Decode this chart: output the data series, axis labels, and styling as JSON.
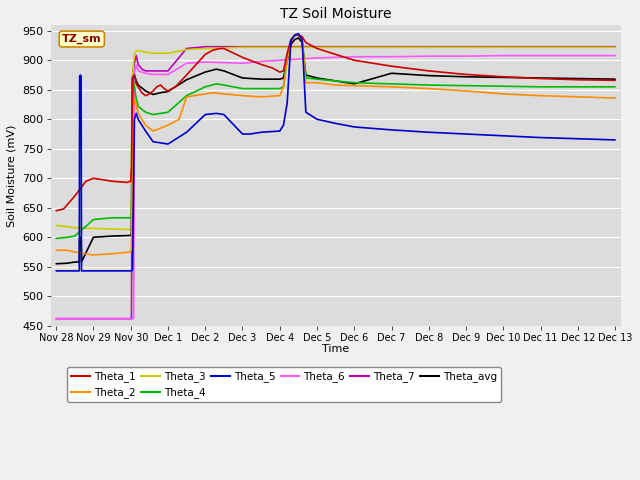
{
  "title": "TZ Soil Moisture",
  "ylabel": "Soil Moisture (mV)",
  "xlabel": "Time",
  "ylim": [
    450,
    960
  ],
  "xlim": [
    -0.15,
    15.15
  ],
  "bg_color": "#dcdcdc",
  "fig_bg_color": "#f0f0f0",
  "legend_box_label": "TZ_sm",
  "series": {
    "Theta_1": {
      "color": "#cc0000",
      "points": [
        [
          0,
          645
        ],
        [
          0.2,
          648
        ],
        [
          0.5,
          670
        ],
        [
          0.8,
          695
        ],
        [
          1.0,
          700
        ],
        [
          1.5,
          695
        ],
        [
          1.9,
          693
        ],
        [
          2.0,
          695
        ],
        [
          2.02,
          720
        ],
        [
          2.05,
          870
        ],
        [
          2.1,
          875
        ],
        [
          2.15,
          860
        ],
        [
          2.2,
          855
        ],
        [
          2.3,
          845
        ],
        [
          2.4,
          840
        ],
        [
          2.5,
          843
        ],
        [
          2.6,
          848
        ],
        [
          2.7,
          855
        ],
        [
          2.8,
          858
        ],
        [
          2.9,
          852
        ],
        [
          3.0,
          848
        ],
        [
          3.2,
          855
        ],
        [
          3.5,
          875
        ],
        [
          4.0,
          910
        ],
        [
          4.2,
          917
        ],
        [
          4.4,
          920
        ],
        [
          4.5,
          920
        ],
        [
          5.0,
          905
        ],
        [
          5.2,
          900
        ],
        [
          5.5,
          893
        ],
        [
          5.8,
          887
        ],
        [
          6.0,
          880
        ],
        [
          6.1,
          882
        ],
        [
          6.2,
          912
        ],
        [
          6.3,
          935
        ],
        [
          6.4,
          942
        ],
        [
          6.5,
          943
        ],
        [
          6.6,
          940
        ],
        [
          6.7,
          930
        ],
        [
          7.0,
          920
        ],
        [
          7.5,
          910
        ],
        [
          8.0,
          900
        ],
        [
          9.0,
          890
        ],
        [
          10.0,
          882
        ],
        [
          11.0,
          876
        ],
        [
          12.0,
          872
        ],
        [
          13.0,
          869
        ],
        [
          14.0,
          867
        ],
        [
          15.0,
          866
        ]
      ]
    },
    "Theta_2": {
      "color": "#ff8c00",
      "points": [
        [
          0,
          578
        ],
        [
          0.3,
          578
        ],
        [
          0.5,
          575
        ],
        [
          1.0,
          570
        ],
        [
          1.5,
          572
        ],
        [
          2.0,
          575
        ],
        [
          2.02,
          580
        ],
        [
          2.05,
          800
        ],
        [
          2.1,
          835
        ],
        [
          2.15,
          825
        ],
        [
          2.2,
          810
        ],
        [
          2.4,
          790
        ],
        [
          2.6,
          780
        ],
        [
          2.8,
          785
        ],
        [
          3.0,
          790
        ],
        [
          3.3,
          800
        ],
        [
          3.5,
          838
        ],
        [
          4.0,
          843
        ],
        [
          4.2,
          845
        ],
        [
          4.5,
          843
        ],
        [
          5.0,
          840
        ],
        [
          5.5,
          838
        ],
        [
          6.0,
          840
        ],
        [
          6.1,
          855
        ],
        [
          6.2,
          900
        ],
        [
          6.3,
          933
        ],
        [
          6.4,
          942
        ],
        [
          6.5,
          943
        ],
        [
          6.6,
          935
        ],
        [
          6.7,
          862
        ],
        [
          7.0,
          862
        ],
        [
          7.5,
          858
        ],
        [
          8.0,
          857
        ],
        [
          9.0,
          855
        ],
        [
          10.0,
          852
        ],
        [
          11.0,
          848
        ],
        [
          12.0,
          843
        ],
        [
          13.0,
          840
        ],
        [
          14.0,
          838
        ],
        [
          15.0,
          836
        ]
      ]
    },
    "Theta_3": {
      "color": "#cccc00",
      "points": [
        [
          0,
          620
        ],
        [
          0.3,
          618
        ],
        [
          0.5,
          616
        ],
        [
          1.0,
          615
        ],
        [
          1.5,
          614
        ],
        [
          2.0,
          613
        ],
        [
          2.02,
          614
        ],
        [
          2.05,
          875
        ],
        [
          2.1,
          910
        ],
        [
          2.15,
          916
        ],
        [
          2.2,
          916
        ],
        [
          2.4,
          914
        ],
        [
          2.6,
          912
        ],
        [
          2.8,
          912
        ],
        [
          3.0,
          912
        ],
        [
          3.5,
          918
        ],
        [
          4.0,
          920
        ],
        [
          4.5,
          921
        ],
        [
          5.0,
          922
        ],
        [
          5.5,
          922
        ],
        [
          6.0,
          922
        ],
        [
          6.5,
          922
        ],
        [
          7.0,
          922
        ],
        [
          7.5,
          922
        ],
        [
          8.0,
          922
        ],
        [
          9.0,
          922
        ],
        [
          10.0,
          922
        ],
        [
          11.0,
          922
        ],
        [
          12.0,
          922
        ],
        [
          13.0,
          922
        ],
        [
          14.0,
          922
        ],
        [
          15.0,
          922
        ]
      ]
    },
    "Theta_4": {
      "color": "#00bb00",
      "points": [
        [
          0,
          598
        ],
        [
          0.3,
          600
        ],
        [
          0.5,
          602
        ],
        [
          1.0,
          630
        ],
        [
          1.5,
          633
        ],
        [
          2.0,
          633
        ],
        [
          2.02,
          635
        ],
        [
          2.05,
          870
        ],
        [
          2.1,
          855
        ],
        [
          2.15,
          835
        ],
        [
          2.2,
          822
        ],
        [
          2.4,
          812
        ],
        [
          2.6,
          808
        ],
        [
          2.8,
          810
        ],
        [
          3.0,
          812
        ],
        [
          3.5,
          840
        ],
        [
          4.0,
          855
        ],
        [
          4.3,
          860
        ],
        [
          4.5,
          858
        ],
        [
          5.0,
          852
        ],
        [
          5.5,
          852
        ],
        [
          6.0,
          852
        ],
        [
          6.1,
          855
        ],
        [
          6.2,
          905
        ],
        [
          6.3,
          935
        ],
        [
          6.4,
          942
        ],
        [
          6.5,
          943
        ],
        [
          6.6,
          938
        ],
        [
          6.7,
          870
        ],
        [
          7.0,
          868
        ],
        [
          7.5,
          865
        ],
        [
          8.0,
          862
        ],
        [
          9.0,
          860
        ],
        [
          10.0,
          858
        ],
        [
          11.0,
          857
        ],
        [
          12.0,
          856
        ],
        [
          13.0,
          855
        ],
        [
          14.0,
          855
        ],
        [
          15.0,
          855
        ]
      ]
    },
    "Theta_5": {
      "color": "#0000cc",
      "points": [
        [
          0,
          543
        ],
        [
          0.3,
          543
        ],
        [
          0.5,
          543
        ],
        [
          0.62,
          543
        ],
        [
          0.63,
          873
        ],
        [
          0.65,
          875
        ],
        [
          0.67,
          873
        ],
        [
          0.68,
          543
        ],
        [
          0.8,
          543
        ],
        [
          1.0,
          543
        ],
        [
          1.5,
          543
        ],
        [
          2.0,
          543
        ],
        [
          2.02,
          543
        ],
        [
          2.05,
          545
        ],
        [
          2.1,
          800
        ],
        [
          2.15,
          810
        ],
        [
          2.2,
          800
        ],
        [
          2.4,
          780
        ],
        [
          2.6,
          762
        ],
        [
          2.8,
          760
        ],
        [
          3.0,
          758
        ],
        [
          3.5,
          778
        ],
        [
          4.0,
          808
        ],
        [
          4.3,
          810
        ],
        [
          4.5,
          808
        ],
        [
          5.0,
          775
        ],
        [
          5.2,
          775
        ],
        [
          5.5,
          778
        ],
        [
          6.0,
          780
        ],
        [
          6.1,
          790
        ],
        [
          6.2,
          828
        ],
        [
          6.3,
          933
        ],
        [
          6.4,
          943
        ],
        [
          6.5,
          945
        ],
        [
          6.6,
          935
        ],
        [
          6.7,
          812
        ],
        [
          7.0,
          800
        ],
        [
          7.5,
          793
        ],
        [
          8.0,
          787
        ],
        [
          9.0,
          782
        ],
        [
          10.0,
          778
        ],
        [
          11.0,
          775
        ],
        [
          12.0,
          772
        ],
        [
          13.0,
          769
        ],
        [
          14.0,
          767
        ],
        [
          15.0,
          765
        ]
      ]
    },
    "Theta_6": {
      "color": "#ff55ff",
      "points": [
        [
          0,
          462
        ],
        [
          0.3,
          462
        ],
        [
          0.5,
          462
        ],
        [
          1.0,
          462
        ],
        [
          1.5,
          462
        ],
        [
          2.0,
          462
        ],
        [
          2.05,
          462
        ],
        [
          2.08,
          462
        ],
        [
          2.1,
          880
        ],
        [
          2.15,
          892
        ],
        [
          2.2,
          882
        ],
        [
          2.4,
          878
        ],
        [
          2.6,
          876
        ],
        [
          2.8,
          876
        ],
        [
          3.0,
          876
        ],
        [
          3.5,
          895
        ],
        [
          4.0,
          897
        ],
        [
          4.5,
          896
        ],
        [
          5.0,
          895
        ],
        [
          5.5,
          898
        ],
        [
          6.0,
          900
        ],
        [
          6.5,
          902
        ],
        [
          7.0,
          904
        ],
        [
          7.5,
          905
        ],
        [
          8.0,
          906
        ],
        [
          9.0,
          906
        ],
        [
          10.0,
          907
        ],
        [
          11.0,
          907
        ],
        [
          12.0,
          908
        ],
        [
          13.0,
          908
        ],
        [
          14.0,
          908
        ],
        [
          15.0,
          908
        ]
      ]
    },
    "Theta_7": {
      "color": "#bb00bb",
      "points": [
        [
          0,
          462
        ],
        [
          0.3,
          462
        ],
        [
          0.5,
          462
        ],
        [
          1.0,
          462
        ],
        [
          1.5,
          462
        ],
        [
          2.0,
          462
        ],
        [
          2.02,
          462
        ],
        [
          2.05,
          875
        ],
        [
          2.1,
          895
        ],
        [
          2.15,
          908
        ],
        [
          2.2,
          893
        ],
        [
          2.3,
          885
        ],
        [
          2.4,
          882
        ],
        [
          2.6,
          882
        ],
        [
          2.8,
          882
        ],
        [
          3.0,
          882
        ],
        [
          3.5,
          920
        ],
        [
          4.0,
          923
        ],
        [
          4.5,
          923
        ],
        [
          5.0,
          923
        ],
        [
          5.5,
          923
        ],
        [
          6.0,
          923
        ],
        [
          6.5,
          923
        ],
        [
          7.0,
          923
        ],
        [
          7.5,
          923
        ],
        [
          8.0,
          923
        ],
        [
          9.0,
          923
        ],
        [
          10.0,
          923
        ],
        [
          11.0,
          923
        ],
        [
          12.0,
          923
        ],
        [
          13.0,
          923
        ],
        [
          14.0,
          923
        ],
        [
          15.0,
          923
        ]
      ]
    },
    "Theta_avg": {
      "color": "#000000",
      "points": [
        [
          0,
          555
        ],
        [
          0.3,
          556
        ],
        [
          0.5,
          558
        ],
        [
          0.62,
          558
        ],
        [
          0.63,
          598
        ],
        [
          0.65,
          600
        ],
        [
          0.67,
          598
        ],
        [
          0.68,
          558
        ],
        [
          1.0,
          600
        ],
        [
          1.5,
          602
        ],
        [
          2.0,
          603
        ],
        [
          2.02,
          608
        ],
        [
          2.05,
          870
        ],
        [
          2.1,
          875
        ],
        [
          2.15,
          865
        ],
        [
          2.2,
          858
        ],
        [
          2.4,
          848
        ],
        [
          2.6,
          842
        ],
        [
          2.8,
          845
        ],
        [
          3.0,
          847
        ],
        [
          3.5,
          867
        ],
        [
          4.0,
          880
        ],
        [
          4.3,
          885
        ],
        [
          4.5,
          882
        ],
        [
          5.0,
          870
        ],
        [
          5.5,
          868
        ],
        [
          6.0,
          868
        ],
        [
          6.1,
          870
        ],
        [
          6.2,
          900
        ],
        [
          6.3,
          927
        ],
        [
          6.4,
          935
        ],
        [
          6.5,
          938
        ],
        [
          6.6,
          930
        ],
        [
          6.7,
          875
        ],
        [
          7.0,
          870
        ],
        [
          7.5,
          865
        ],
        [
          8.0,
          860
        ],
        [
          9.0,
          878
        ],
        [
          9.5,
          876
        ],
        [
          10.0,
          874
        ],
        [
          11.0,
          872
        ],
        [
          12.0,
          871
        ],
        [
          13.0,
          870
        ],
        [
          14.0,
          869
        ],
        [
          15.0,
          868
        ]
      ]
    }
  },
  "xtick_labels": [
    "Nov 28",
    "Nov 29",
    "Nov 30",
    "Dec 1",
    "Dec 2",
    "Dec 3",
    "Dec 4",
    "Dec 5",
    "Dec 6",
    "Dec 7",
    "Dec 8",
    "Dec 9",
    "Dec 10",
    "Dec 11",
    "Dec 12",
    "Dec 13"
  ],
  "xtick_positions": [
    0,
    1,
    2,
    3,
    4,
    5,
    6,
    7,
    8,
    9,
    10,
    11,
    12,
    13,
    14,
    15
  ],
  "ytick_labels": [
    "450",
    "500",
    "550",
    "600",
    "650",
    "700",
    "750",
    "800",
    "850",
    "900",
    "950"
  ],
  "ytick_positions": [
    450,
    500,
    550,
    600,
    650,
    700,
    750,
    800,
    850,
    900,
    950
  ],
  "legend_entries_row1": [
    [
      "Theta_1",
      "#cc0000"
    ],
    [
      "Theta_2",
      "#ff8c00"
    ],
    [
      "Theta_3",
      "#cccc00"
    ],
    [
      "Theta_4",
      "#00bb00"
    ],
    [
      "Theta_5",
      "#0000cc"
    ],
    [
      "Theta_6",
      "#ff55ff"
    ]
  ],
  "legend_entries_row2": [
    [
      "Theta_7",
      "#bb00bb"
    ],
    [
      "Theta_avg",
      "#000000"
    ]
  ]
}
